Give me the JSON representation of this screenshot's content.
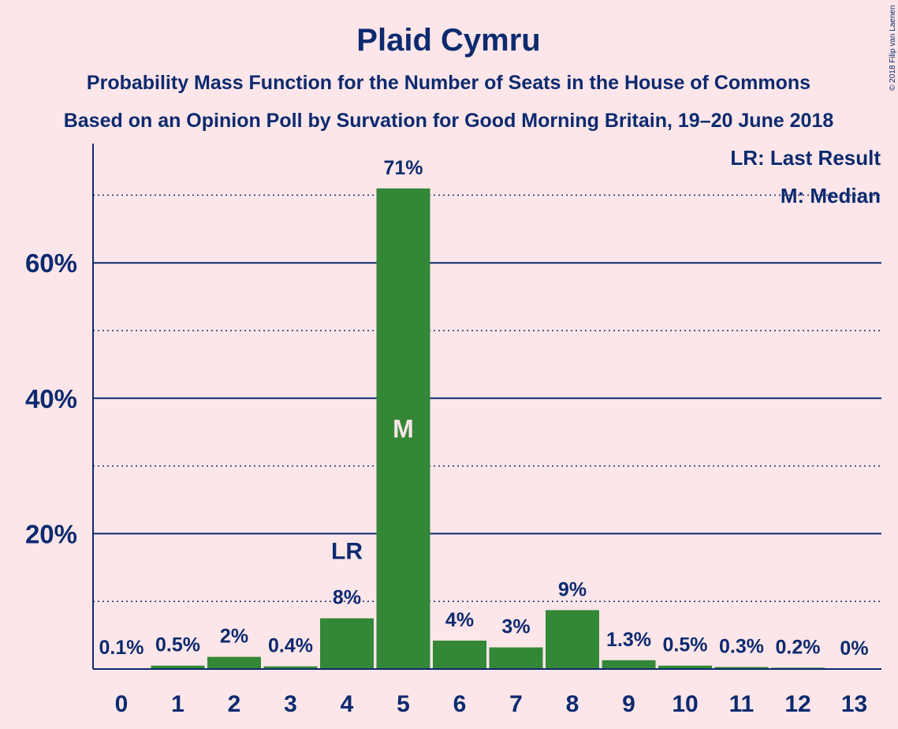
{
  "chart_data": {
    "type": "bar",
    "title": "Plaid Cymru",
    "subtitle": "Probability Mass Function for the Number of Seats in the House of Commons",
    "subtitle2": "Based on an Opinion Poll by Survation for Good Morning Britain, 19–20 June 2018",
    "categories": [
      "0",
      "1",
      "2",
      "3",
      "4",
      "5",
      "6",
      "7",
      "8",
      "9",
      "10",
      "11",
      "12",
      "13"
    ],
    "values": [
      0.1,
      0.5,
      1.8,
      0.4,
      7.5,
      71,
      4.2,
      3.2,
      8.7,
      1.3,
      0.5,
      0.3,
      0.2,
      0
    ],
    "value_labels": [
      "0.1%",
      "0.5%",
      "2%",
      "0.4%",
      "8%",
      "71%",
      "4%",
      "3%",
      "9%",
      "1.3%",
      "0.5%",
      "0.3%",
      "0.2%",
      "0%"
    ],
    "ylim": [
      0,
      77
    ],
    "yticks": [
      {
        "value": 20,
        "label": "20%"
      },
      {
        "value": 40,
        "label": "40%"
      },
      {
        "value": 60,
        "label": "60%"
      }
    ],
    "minor_gridlines": [
      10,
      30,
      50,
      70
    ],
    "last_result_index": 4,
    "last_result_label": "LR",
    "median_index": 5,
    "median_label": "M",
    "legend": [
      "LR: Last Result",
      "M: Median"
    ],
    "copyright": "© 2018 Filip van Laenen",
    "colors": {
      "bar": "#338736",
      "text": "#0c2a6f",
      "background": "#fde6e9"
    }
  }
}
